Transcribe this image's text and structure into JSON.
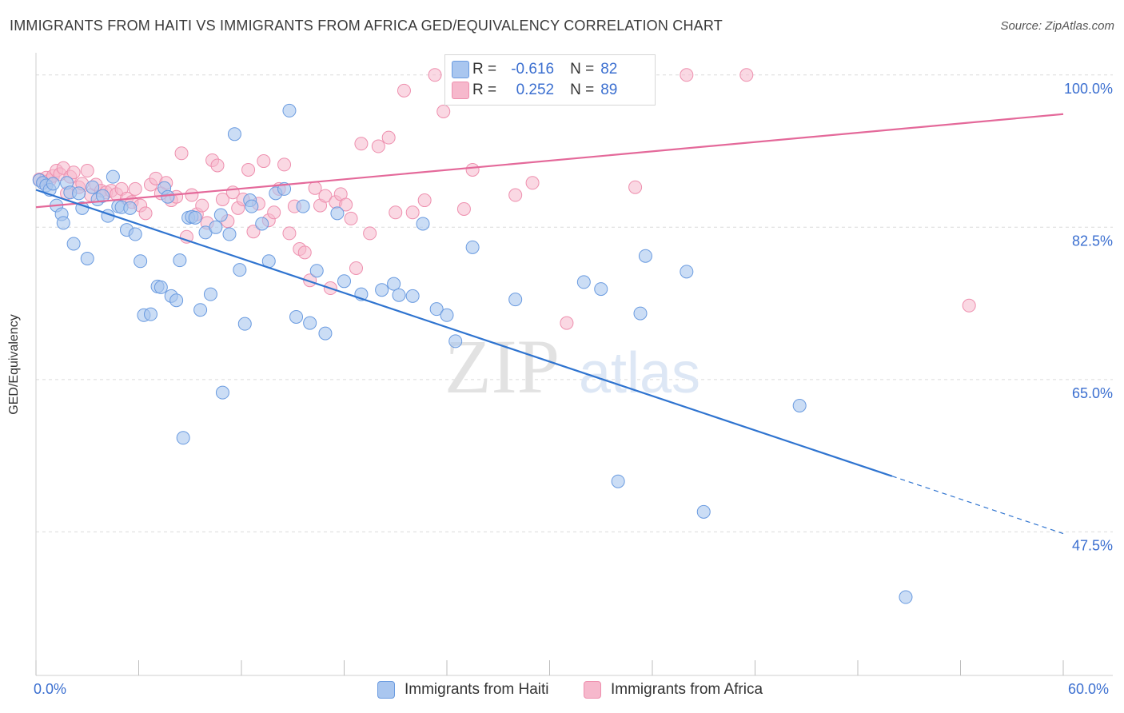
{
  "header": {
    "title": "IMMIGRANTS FROM HAITI VS IMMIGRANTS FROM AFRICA GED/EQUIVALENCY CORRELATION CHART",
    "source": "Source: ZipAtlas.com"
  },
  "watermark": {
    "zip": "ZIP",
    "atlas": "atlas"
  },
  "legend_box": {
    "rows": [
      {
        "r_label": "R =",
        "r_value": "-0.616",
        "n_label": "N =",
        "n_value": "82"
      },
      {
        "r_label": "R =",
        "r_value": "0.252",
        "n_label": "N =",
        "n_value": "89"
      }
    ]
  },
  "bottom_legend": {
    "haiti": "Immigrants from Haiti",
    "africa": "Immigrants from Africa"
  },
  "x_tick_labels": {
    "left": "0.0%",
    "right": "60.0%"
  },
  "colors": {
    "haiti_fill": "#a9c6ef",
    "haiti_stroke": "#6a9be0",
    "haiti_line": "#2f74d0",
    "africa_fill": "#f6b8cc",
    "africa_stroke": "#ee8fae",
    "africa_line": "#e4699a",
    "tick_text": "#3b6fd0",
    "grid": "#dcdcdc"
  },
  "chart_data": {
    "type": "scatter",
    "title": "IMMIGRANTS FROM HAITI VS IMMIGRANTS FROM AFRICA GED/EQUIVALENCY CORRELATION CHART",
    "xlabel": "",
    "ylabel": "GED/Equivalency",
    "xlim": [
      0,
      60
    ],
    "ylim": [
      31,
      102
    ],
    "y_ticks": [
      47.5,
      65.0,
      82.5,
      100.0
    ],
    "y_tick_labels": [
      "47.5%",
      "65.0%",
      "82.5%",
      "100.0%"
    ],
    "x_tick_labels": [
      "0.0%",
      "60.0%"
    ],
    "grid": true,
    "legend": "top-center",
    "series": [
      {
        "name": "Immigrants from Haiti",
        "r": -0.616,
        "n": 82,
        "trend": {
          "x0": 0,
          "y0": 86.8,
          "x1": 50,
          "y1": 53.9,
          "dash_to_x": 60,
          "dash_to_y": 47.3
        },
        "points": [
          [
            0.2,
            87.9
          ],
          [
            0.4,
            87.6
          ],
          [
            0.6,
            87.3
          ],
          [
            0.8,
            86.8
          ],
          [
            1.0,
            87.5
          ],
          [
            1.2,
            85.0
          ],
          [
            1.5,
            84.0
          ],
          [
            1.6,
            83.0
          ],
          [
            1.8,
            87.6
          ],
          [
            2.0,
            86.5
          ],
          [
            2.2,
            80.6
          ],
          [
            2.5,
            86.4
          ],
          [
            2.7,
            84.7
          ],
          [
            3.0,
            78.9
          ],
          [
            3.3,
            87.1
          ],
          [
            3.6,
            85.7
          ],
          [
            3.9,
            86.1
          ],
          [
            4.2,
            83.8
          ],
          [
            4.5,
            88.3
          ],
          [
            4.8,
            84.9
          ],
          [
            5.0,
            84.8
          ],
          [
            5.3,
            82.2
          ],
          [
            5.5,
            84.7
          ],
          [
            5.8,
            81.7
          ],
          [
            6.1,
            78.6
          ],
          [
            6.3,
            72.4
          ],
          [
            6.7,
            72.5
          ],
          [
            7.1,
            75.7
          ],
          [
            7.3,
            75.6
          ],
          [
            7.5,
            87.0
          ],
          [
            7.7,
            86.0
          ],
          [
            7.9,
            74.6
          ],
          [
            8.2,
            74.1
          ],
          [
            8.4,
            78.7
          ],
          [
            8.6,
            58.3
          ],
          [
            8.9,
            83.6
          ],
          [
            9.1,
            83.7
          ],
          [
            9.3,
            83.6
          ],
          [
            9.6,
            73.0
          ],
          [
            9.9,
            81.9
          ],
          [
            10.2,
            74.8
          ],
          [
            10.5,
            82.5
          ],
          [
            10.8,
            83.9
          ],
          [
            10.9,
            63.5
          ],
          [
            11.3,
            81.7
          ],
          [
            11.6,
            93.2
          ],
          [
            11.9,
            77.6
          ],
          [
            12.2,
            71.4
          ],
          [
            12.5,
            85.6
          ],
          [
            12.6,
            84.9
          ],
          [
            13.2,
            82.9
          ],
          [
            13.6,
            78.6
          ],
          [
            14.0,
            86.4
          ],
          [
            14.5,
            86.9
          ],
          [
            14.8,
            95.9
          ],
          [
            15.2,
            72.2
          ],
          [
            15.6,
            84.9
          ],
          [
            16.0,
            71.5
          ],
          [
            16.4,
            77.5
          ],
          [
            16.9,
            70.3
          ],
          [
            17.6,
            84.1
          ],
          [
            18.0,
            76.3
          ],
          [
            19.0,
            74.8
          ],
          [
            20.2,
            75.3
          ],
          [
            20.9,
            76.0
          ],
          [
            21.2,
            74.7
          ],
          [
            22.0,
            74.6
          ],
          [
            22.6,
            82.9
          ],
          [
            23.4,
            73.1
          ],
          [
            24.0,
            72.4
          ],
          [
            24.5,
            69.4
          ],
          [
            25.5,
            80.2
          ],
          [
            28.0,
            74.2
          ],
          [
            32.0,
            76.2
          ],
          [
            33.0,
            75.4
          ],
          [
            34.0,
            53.3
          ],
          [
            35.3,
            72.6
          ],
          [
            35.6,
            79.2
          ],
          [
            38.0,
            77.4
          ],
          [
            39.0,
            49.8
          ],
          [
            44.6,
            62.0
          ],
          [
            50.8,
            40.0
          ]
        ]
      },
      {
        "name": "Immigrants from Africa",
        "r": 0.252,
        "n": 89,
        "trend": {
          "x0": 0,
          "y0": 84.8,
          "x1": 60,
          "y1": 95.5
        },
        "points": [
          [
            0.2,
            88.0
          ],
          [
            0.4,
            87.6
          ],
          [
            0.6,
            88.2
          ],
          [
            0.8,
            87.9
          ],
          [
            1.0,
            88.4
          ],
          [
            1.2,
            89.0
          ],
          [
            1.4,
            88.6
          ],
          [
            1.6,
            89.3
          ],
          [
            1.8,
            86.4
          ],
          [
            2.0,
            88.3
          ],
          [
            2.2,
            88.8
          ],
          [
            2.5,
            87.1
          ],
          [
            2.7,
            87.5
          ],
          [
            3.0,
            89.0
          ],
          [
            3.2,
            86.2
          ],
          [
            3.5,
            87.4
          ],
          [
            3.8,
            86.7
          ],
          [
            4.1,
            86.5
          ],
          [
            4.4,
            86.7
          ],
          [
            4.7,
            86.3
          ],
          [
            5.0,
            86.9
          ],
          [
            5.3,
            85.8
          ],
          [
            5.6,
            85.4
          ],
          [
            5.8,
            86.9
          ],
          [
            6.1,
            85.0
          ],
          [
            6.4,
            84.1
          ],
          [
            6.7,
            87.4
          ],
          [
            7.0,
            88.1
          ],
          [
            7.3,
            86.4
          ],
          [
            7.6,
            87.6
          ],
          [
            7.9,
            85.6
          ],
          [
            8.2,
            86.0
          ],
          [
            8.5,
            91.0
          ],
          [
            8.8,
            81.4
          ],
          [
            9.1,
            86.2
          ],
          [
            9.4,
            84.0
          ],
          [
            9.7,
            85.0
          ],
          [
            10.0,
            83.0
          ],
          [
            10.3,
            90.2
          ],
          [
            10.6,
            89.6
          ],
          [
            10.9,
            85.7
          ],
          [
            11.2,
            83.2
          ],
          [
            11.5,
            86.5
          ],
          [
            11.8,
            84.7
          ],
          [
            12.1,
            85.7
          ],
          [
            12.4,
            89.1
          ],
          [
            12.7,
            82.0
          ],
          [
            13.0,
            85.2
          ],
          [
            13.3,
            90.1
          ],
          [
            13.6,
            83.3
          ],
          [
            13.9,
            84.2
          ],
          [
            14.2,
            86.9
          ],
          [
            14.5,
            89.7
          ],
          [
            14.8,
            81.8
          ],
          [
            15.1,
            84.9
          ],
          [
            15.4,
            80.0
          ],
          [
            15.7,
            79.6
          ],
          [
            16.0,
            76.4
          ],
          [
            16.3,
            87.0
          ],
          [
            16.6,
            85.0
          ],
          [
            16.9,
            86.1
          ],
          [
            17.2,
            75.5
          ],
          [
            17.5,
            85.4
          ],
          [
            17.8,
            86.3
          ],
          [
            18.1,
            85.1
          ],
          [
            18.4,
            83.5
          ],
          [
            18.7,
            77.8
          ],
          [
            19.0,
            92.1
          ],
          [
            19.5,
            81.8
          ],
          [
            20.0,
            91.8
          ],
          [
            20.6,
            92.8
          ],
          [
            21.0,
            84.2
          ],
          [
            21.5,
            98.2
          ],
          [
            22.0,
            84.2
          ],
          [
            22.7,
            85.6
          ],
          [
            23.3,
            100.0
          ],
          [
            23.8,
            95.8
          ],
          [
            25.0,
            84.6
          ],
          [
            25.5,
            89.1
          ],
          [
            26.0,
            97.6
          ],
          [
            27.2,
            100.0
          ],
          [
            28.0,
            86.2
          ],
          [
            29.0,
            87.6
          ],
          [
            31.0,
            71.5
          ],
          [
            32.5,
            100.0
          ],
          [
            35.0,
            87.1
          ],
          [
            38.0,
            100.0
          ],
          [
            41.5,
            100.0
          ],
          [
            54.5,
            73.5
          ]
        ]
      }
    ]
  }
}
